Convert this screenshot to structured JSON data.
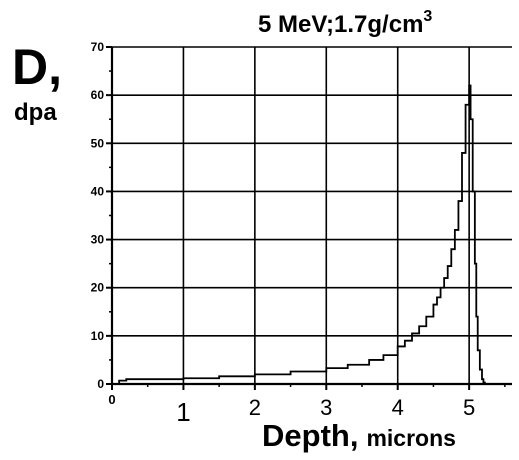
{
  "chart_data": {
    "type": "line",
    "title": "5 MeV;1.7g/cm",
    "title_superscript": "3",
    "ylabel": "D,",
    "ylabel_unit": "dpa",
    "xlabel": "Depth,",
    "xlabel_unit": "microns",
    "xlim": [
      0,
      5.6
    ],
    "ylim": [
      0,
      70
    ],
    "grid": true,
    "x_ticks": [
      {
        "value": 0,
        "label": "0"
      },
      {
        "value": 1,
        "label": "1"
      },
      {
        "value": 2,
        "label": "2"
      },
      {
        "value": 3,
        "label": "3"
      },
      {
        "value": 4,
        "label": "4"
      },
      {
        "value": 5,
        "label": "5"
      }
    ],
    "y_ticks": [
      {
        "value": 0,
        "label": "0"
      },
      {
        "value": 10,
        "label": "10"
      },
      {
        "value": 20,
        "label": "20"
      },
      {
        "value": 30,
        "label": "30"
      },
      {
        "value": 40,
        "label": "40"
      },
      {
        "value": 50,
        "label": "50"
      },
      {
        "value": 60,
        "label": "60"
      },
      {
        "value": 70,
        "label": "70"
      }
    ],
    "series": [
      {
        "color": "#000000",
        "x": [
          0,
          0.1,
          0.2,
          0.5,
          1.0,
          1.5,
          2.0,
          2.5,
          3.0,
          3.3,
          3.6,
          3.8,
          4.0,
          4.1,
          4.2,
          4.3,
          4.4,
          4.5,
          4.55,
          4.6,
          4.65,
          4.7,
          4.75,
          4.8,
          4.85,
          4.9,
          4.95,
          5.0,
          5.02,
          5.05,
          5.08,
          5.1,
          5.12,
          5.15,
          5.18,
          5.2,
          5.22
        ],
        "y": [
          0,
          0.7,
          1.0,
          1.0,
          1.2,
          1.6,
          2.0,
          2.6,
          3.3,
          4.0,
          5.0,
          6.0,
          7.8,
          9.0,
          10.5,
          12.0,
          14.0,
          16.5,
          18.0,
          20.0,
          22.0,
          24.5,
          28.0,
          32.0,
          38.0,
          48.0,
          58.0,
          62.0,
          55.0,
          40.0,
          25.0,
          14.0,
          7.0,
          3.0,
          1.0,
          0.3,
          0
        ]
      }
    ]
  }
}
